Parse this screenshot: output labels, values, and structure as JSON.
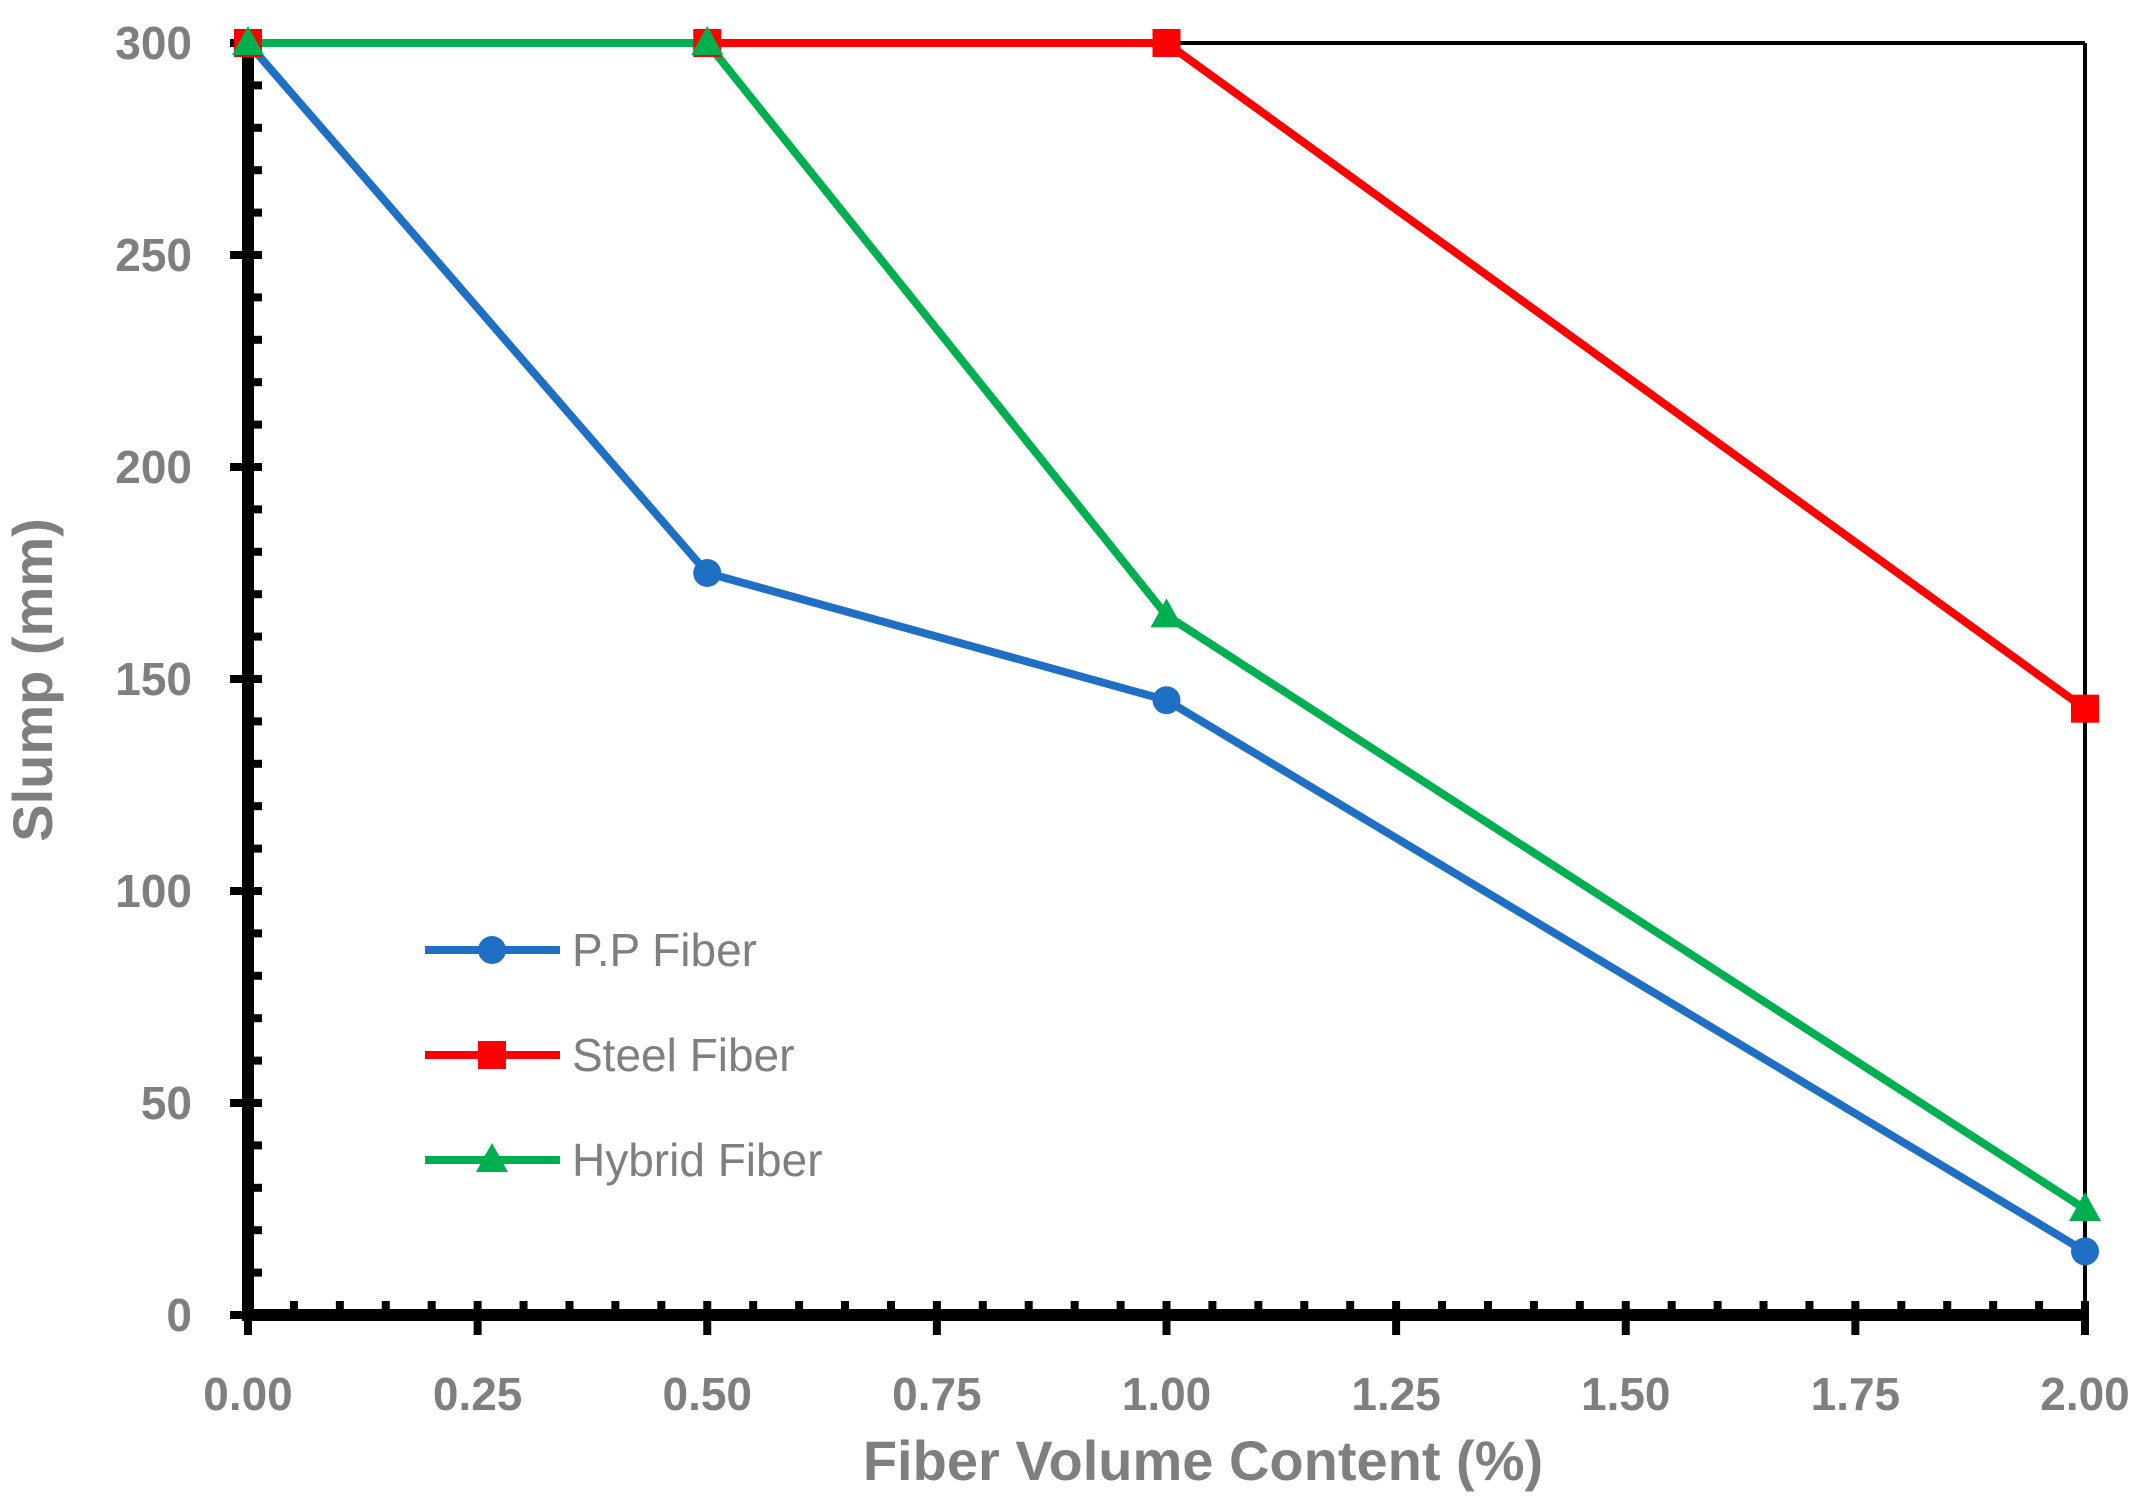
{
  "chart_data": {
    "type": "line",
    "title": "",
    "xlabel": "Fiber Volume Content (%)",
    "ylabel": "Slump (mm)",
    "xlim": [
      0,
      2
    ],
    "ylim": [
      0,
      300
    ],
    "x_ticks": [
      "0.00",
      "0.25",
      "0.50",
      "0.75",
      "1.00",
      "1.25",
      "1.50",
      "1.75",
      "2.00"
    ],
    "y_ticks": [
      "0",
      "50",
      "100",
      "150",
      "200",
      "250",
      "300"
    ],
    "x": [
      0,
      0.5,
      1.0,
      2.0
    ],
    "series": [
      {
        "name": "P.P Fiber",
        "color": "#1f6fc5",
        "marker": "circle",
        "values": [
          300,
          175,
          145,
          15
        ]
      },
      {
        "name": "Steel Fiber",
        "color": "#ff0000",
        "marker": "square",
        "values": [
          300,
          300,
          300,
          143
        ]
      },
      {
        "name": "Hybrid Fiber",
        "color": "#00b050",
        "marker": "triangle",
        "values": [
          300,
          300,
          165,
          25
        ]
      }
    ],
    "legend_position": "bottom-left",
    "grid": false
  }
}
